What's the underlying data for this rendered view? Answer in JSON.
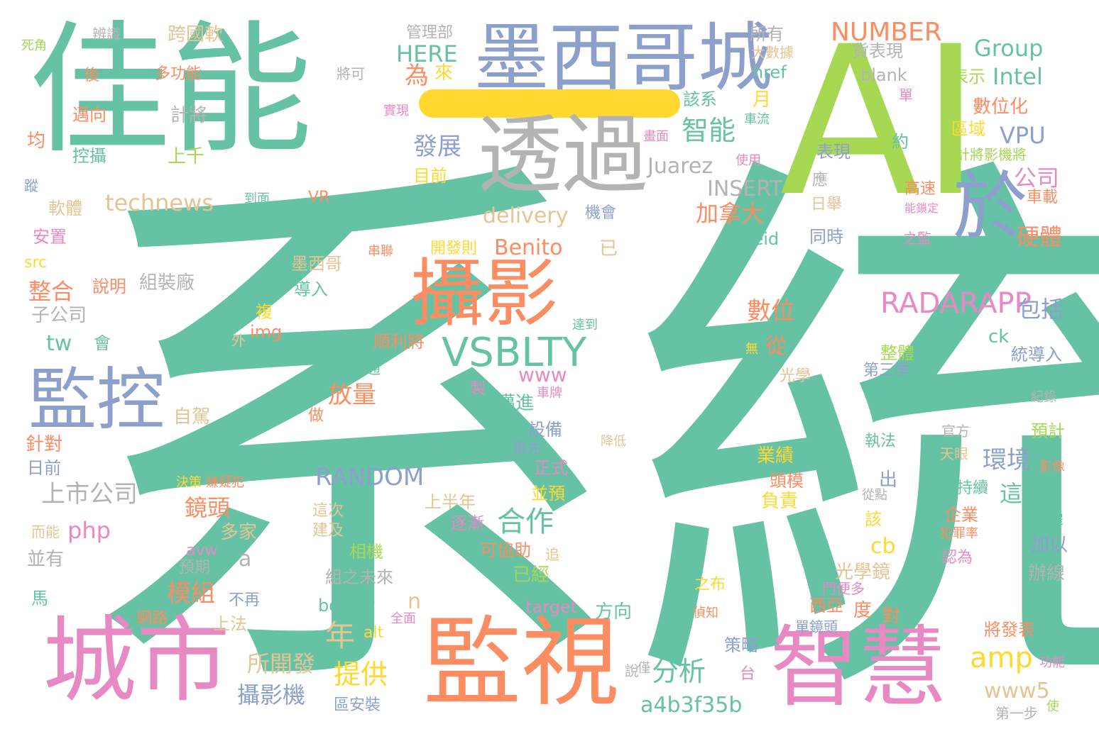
{
  "palette": {
    "green": "#66c2a5",
    "orange": "#fc8d62",
    "blue": "#8da0cb",
    "pink": "#e78ac3",
    "lime": "#a6d854",
    "yellow": "#ffd92f",
    "tan": "#e5c494",
    "gray": "#b3b3b3"
  },
  "words": [
    {
      "text": "系統",
      "color": "green"
    },
    {
      "text": "佳能",
      "color": "green"
    },
    {
      "text": "AI",
      "color": "lime"
    },
    {
      "text": "墨西哥城",
      "color": "blue"
    },
    {
      "text": "透過",
      "color": "gray"
    },
    {
      "text": "於",
      "color": "blue"
    },
    {
      "text": "攝影",
      "color": "orange"
    },
    {
      "text": "監控",
      "color": "blue"
    },
    {
      "text": "城市",
      "color": "pink"
    },
    {
      "text": "監視",
      "color": "orange"
    },
    {
      "text": "智慧",
      "color": "pink"
    },
    {
      "text": "VSBLTY",
      "color": "green"
    },
    {
      "text": "RADARAPP",
      "color": "pink"
    },
    {
      "text": "NUMBER",
      "color": "orange"
    },
    {
      "text": "Group",
      "color": "green"
    },
    {
      "text": "HERE",
      "color": "green"
    },
    {
      "text": "Intel",
      "color": "green"
    },
    {
      "text": "VPU",
      "color": "blue"
    },
    {
      "text": "智能",
      "color": "green"
    },
    {
      "text": "發展",
      "color": "blue"
    },
    {
      "text": "Juarez",
      "color": "gray"
    },
    {
      "text": "INSERT",
      "color": "gray"
    },
    {
      "text": "technews",
      "color": "tan"
    },
    {
      "text": "delivery",
      "color": "tan"
    },
    {
      "text": "加拿大",
      "color": "orange"
    },
    {
      "text": "公司",
      "color": "pink"
    },
    {
      "text": "硬體",
      "color": "orange"
    },
    {
      "text": "車載",
      "color": "orange"
    },
    {
      "text": "Benito",
      "color": "orange"
    },
    {
      "text": "zoneid",
      "color": "green"
    },
    {
      "text": "數位",
      "color": "orange"
    },
    {
      "text": "從",
      "color": "orange"
    },
    {
      "text": "包括",
      "color": "blue"
    },
    {
      "text": "數位化",
      "color": "orange"
    },
    {
      "text": "區域",
      "color": "yellow"
    },
    {
      "text": "表現",
      "color": "blue"
    },
    {
      "text": "整合",
      "color": "orange"
    },
    {
      "text": "www",
      "color": "pink"
    },
    {
      "text": "放量",
      "color": "orange"
    },
    {
      "text": "tw",
      "color": "green"
    },
    {
      "text": "RANDOM",
      "color": "blue"
    },
    {
      "text": "上市公司",
      "color": "gray"
    },
    {
      "text": "合作",
      "color": "green"
    },
    {
      "text": "環境",
      "color": "blue"
    },
    {
      "text": "這套",
      "color": "green"
    },
    {
      "text": "鏡頭",
      "color": "orange"
    },
    {
      "text": "php",
      "color": "pink"
    },
    {
      "text": "模組",
      "color": "orange"
    },
    {
      "text": "年",
      "color": "tan"
    },
    {
      "text": "cb",
      "color": "yellow"
    },
    {
      "text": "amp",
      "color": "yellow"
    },
    {
      "text": "所開發",
      "color": "tan"
    },
    {
      "text": "提供",
      "color": "yellow"
    },
    {
      "text": "分析",
      "color": "green"
    },
    {
      "text": "攝影機",
      "color": "blue"
    },
    {
      "text": "a4b3f35b",
      "color": "green"
    },
    {
      "text": "www5",
      "color": "tan"
    },
    {
      "text": "border",
      "color": "green"
    },
    {
      "text": "target",
      "color": "pink"
    },
    {
      "text": "方向",
      "color": "green"
    },
    {
      "text": "a",
      "color": "gray"
    },
    {
      "text": "n",
      "color": "tan"
    },
    {
      "text": "為",
      "color": "orange"
    },
    {
      "text": "來",
      "color": "yellow"
    },
    {
      "text": "月",
      "color": "yellow"
    },
    {
      "text": "href",
      "color": "green"
    },
    {
      "text": "blank",
      "color": "gray"
    },
    {
      "text": "貨表現",
      "color": "gray"
    },
    {
      "text": "所有",
      "color": "gray"
    },
    {
      "text": "大數據",
      "color": "tan"
    },
    {
      "text": "管理部",
      "color": "gray"
    },
    {
      "text": "跨國軟",
      "color": "tan"
    },
    {
      "text": "辨識",
      "color": "gray"
    },
    {
      "text": "死角",
      "color": "lime"
    },
    {
      "text": "後",
      "color": "orange"
    },
    {
      "text": "多功能",
      "color": "orange"
    },
    {
      "text": "將可",
      "color": "gray"
    },
    {
      "text": "邁向",
      "color": "orange"
    },
    {
      "text": "計將",
      "color": "gray"
    },
    {
      "text": "控攝",
      "color": "green"
    },
    {
      "text": "上千",
      "color": "lime"
    },
    {
      "text": "均",
      "color": "orange"
    },
    {
      "text": "蹤",
      "color": "blue"
    },
    {
      "text": "軟體",
      "color": "tan"
    },
    {
      "text": "安置",
      "color": "pink"
    },
    {
      "text": "src",
      "color": "yellow"
    },
    {
      "text": "說明",
      "color": "orange"
    },
    {
      "text": "組裝廠",
      "color": "gray"
    },
    {
      "text": "子公司",
      "color": "gray"
    },
    {
      "text": "會",
      "color": "green"
    },
    {
      "text": "自駕",
      "color": "tan"
    },
    {
      "text": "針對",
      "color": "orange"
    },
    {
      "text": "日前",
      "color": "blue"
    },
    {
      "text": "並有",
      "color": "gray"
    },
    {
      "text": "馬",
      "color": "green"
    },
    {
      "text": "而能",
      "color": "tan"
    },
    {
      "text": "網路",
      "color": "orange"
    },
    {
      "text": "上法",
      "color": "tan"
    },
    {
      "text": "不再",
      "color": "blue"
    },
    {
      "text": "預期",
      "color": "gray"
    },
    {
      "text": "avw",
      "color": "pink"
    },
    {
      "text": "多家",
      "color": "tan"
    },
    {
      "text": "決策",
      "color": "yellow"
    },
    {
      "text": "嫌疑犯",
      "color": "orange"
    },
    {
      "text": "墨西哥",
      "color": "tan"
    },
    {
      "text": "導入",
      "color": "green"
    },
    {
      "text": "開發則",
      "color": "yellow"
    },
    {
      "text": "已",
      "color": "tan"
    },
    {
      "text": "串聯",
      "color": "orange"
    },
    {
      "text": "img",
      "color": "orange"
    },
    {
      "text": "複",
      "color": "yellow"
    },
    {
      "text": "外",
      "color": "tan"
    },
    {
      "text": "順利將",
      "color": "orange"
    },
    {
      "text": "交通",
      "color": "green"
    },
    {
      "text": "製",
      "color": "pink"
    },
    {
      "text": "做",
      "color": "orange"
    },
    {
      "text": "這次",
      "color": "tan"
    },
    {
      "text": "建及",
      "color": "tan"
    },
    {
      "text": "相機",
      "color": "lime"
    },
    {
      "text": "組之未來",
      "color": "gray"
    },
    {
      "text": "光學鏡",
      "color": "tan"
    },
    {
      "text": "alt",
      "color": "yellow"
    },
    {
      "text": "全面",
      "color": "pink"
    },
    {
      "text": "區安裝",
      "color": "blue"
    },
    {
      "text": "策略",
      "color": "blue"
    },
    {
      "text": "台",
      "color": "pink"
    },
    {
      "text": "說",
      "color": "gray"
    },
    {
      "text": "僅",
      "color": "gray"
    },
    {
      "text": "功能",
      "color": "pink"
    },
    {
      "text": "第一步",
      "color": "gray"
    },
    {
      "text": "將發表",
      "color": "orange"
    },
    {
      "text": "對",
      "color": "orange"
    },
    {
      "text": "度",
      "color": "orange"
    },
    {
      "text": "西亞",
      "color": "orange"
    },
    {
      "text": "單鏡頭",
      "color": "blue"
    },
    {
      "text": "偵知",
      "color": "orange"
    },
    {
      "text": "之布",
      "color": "yellow"
    },
    {
      "text": "門便多",
      "color": "pink"
    },
    {
      "text": "該",
      "color": "yellow"
    },
    {
      "text": "從點",
      "color": "gray"
    },
    {
      "text": "負責",
      "color": "yellow"
    },
    {
      "text": "頭模",
      "color": "orange"
    },
    {
      "text": "業績",
      "color": "yellow"
    },
    {
      "text": "執法",
      "color": "green"
    },
    {
      "text": "出",
      "color": "blue"
    },
    {
      "text": "可持續",
      "color": "green"
    },
    {
      "text": "企業",
      "color": "orange"
    },
    {
      "text": "加以",
      "color": "blue"
    },
    {
      "text": "辦線",
      "color": "gray"
    },
    {
      "text": "遍布",
      "color": "green"
    },
    {
      "text": "認為",
      "color": "pink"
    },
    {
      "text": "犯罪率",
      "color": "orange"
    },
    {
      "text": "犯罪",
      "color": "green"
    },
    {
      "text": "影像",
      "color": "orange"
    },
    {
      "text": "天眼",
      "color": "tan"
    },
    {
      "text": "官方",
      "color": "gray"
    },
    {
      "text": "預計",
      "color": "lime"
    },
    {
      "text": "紀錄",
      "color": "gray"
    },
    {
      "text": "一品",
      "color": "green"
    },
    {
      "text": "統導入",
      "color": "blue"
    },
    {
      "text": "ck",
      "color": "green"
    },
    {
      "text": "整體",
      "color": "lime"
    },
    {
      "text": "第三季",
      "color": "blue"
    },
    {
      "text": "光學",
      "color": "tan"
    },
    {
      "text": "之事",
      "color": "green"
    },
    {
      "text": "之監",
      "color": "pink"
    },
    {
      "text": "同時",
      "color": "blue"
    },
    {
      "text": "日舉",
      "color": "tan"
    },
    {
      "text": "能鎖定",
      "color": "pink"
    },
    {
      "text": "高速",
      "color": "orange"
    },
    {
      "text": "應",
      "color": "gray"
    },
    {
      "text": "預計將影機將",
      "color": "lime"
    },
    {
      "text": "約",
      "color": "green"
    },
    {
      "text": "車流",
      "color": "green"
    },
    {
      "text": "該系",
      "color": "green"
    },
    {
      "text": "單",
      "color": "pink"
    },
    {
      "text": "表示",
      "color": "lime"
    },
    {
      "text": "目前",
      "color": "yellow"
    },
    {
      "text": "實現",
      "color": "pink"
    },
    {
      "text": "使用",
      "color": "pink"
    },
    {
      "text": "畫面",
      "color": "pink"
    },
    {
      "text": "VR",
      "color": "orange"
    },
    {
      "text": "到面",
      "color": "green"
    },
    {
      "text": "機會",
      "color": "blue"
    },
    {
      "text": "上半年",
      "color": "tan"
    },
    {
      "text": "逐漸",
      "color": "pink"
    },
    {
      "text": "可協助",
      "color": "orange"
    },
    {
      "text": "追",
      "color": "tan"
    },
    {
      "text": "已經",
      "color": "lime"
    },
    {
      "text": "並預",
      "color": "yellow"
    },
    {
      "text": "正式",
      "color": "pink"
    },
    {
      "text": "事先",
      "color": "blue"
    },
    {
      "text": "設備",
      "color": "blue"
    },
    {
      "text": "降低",
      "color": "tan"
    },
    {
      "text": "邁進",
      "color": "green"
    },
    {
      "text": "車牌",
      "color": "pink"
    },
    {
      "text": "達到",
      "color": "green"
    },
    {
      "text": "無",
      "color": "yellow"
    },
    {
      "text": "使",
      "color": "lime"
    }
  ]
}
